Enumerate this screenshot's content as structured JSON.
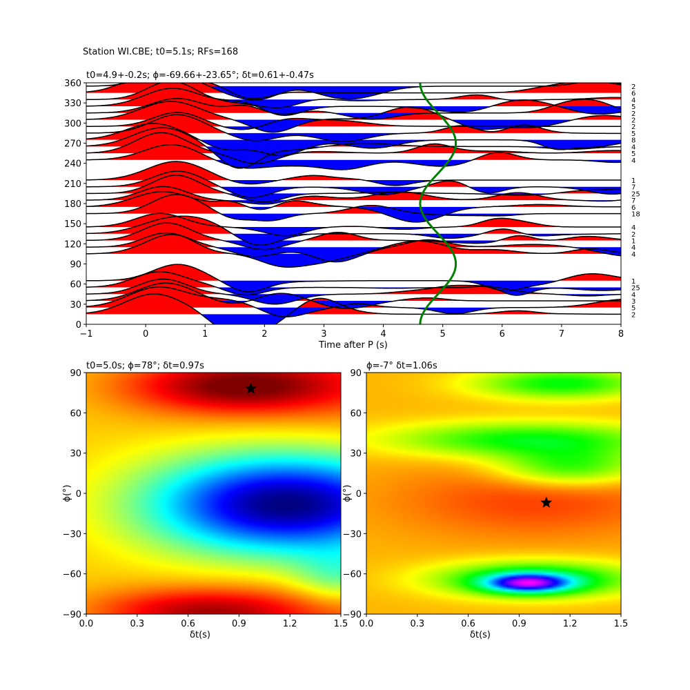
{
  "figure": {
    "suptitle": "Station WI.CBE; t0=5.1s; RFs=168"
  },
  "chart_data": [
    {
      "type": "line",
      "name": "receiver-function-traces",
      "title": "t0=4.9+-0.2s; ϕ=-69.66+-23.65°; δt=0.61+-0.47s",
      "xlabel": "Time after P (s)",
      "ylabel": "",
      "xlim": [
        -1,
        8
      ],
      "ylim": [
        0,
        360
      ],
      "xticks": [
        "−1",
        "0",
        "1",
        "2",
        "3",
        "4",
        "5",
        "6",
        "7",
        "8"
      ],
      "yticks": [
        "0",
        "30",
        "60",
        "90",
        "120",
        "150",
        "180",
        "210",
        "240",
        "270",
        "300",
        "330",
        "360"
      ],
      "positive_fill": "#ff0000",
      "negative_fill": "#0000ff",
      "trace_color": "#000000",
      "curve_color": "#008000",
      "traces": [
        {
          "baz": 15,
          "count": "2"
        },
        {
          "baz": 25,
          "count": "5"
        },
        {
          "baz": 35,
          "count": "3"
        },
        {
          "baz": 45,
          "count": "4"
        },
        {
          "baz": 55,
          "count": "25"
        },
        {
          "baz": 65,
          "count": "1"
        },
        {
          "baz": 105,
          "count": "4"
        },
        {
          "baz": 115,
          "count": "4"
        },
        {
          "baz": 125,
          "count": "1"
        },
        {
          "baz": 135,
          "count": "2"
        },
        {
          "baz": 145,
          "count": "4"
        },
        {
          "baz": 165,
          "count": "18"
        },
        {
          "baz": 175,
          "count": "6"
        },
        {
          "baz": 185,
          "count": "7"
        },
        {
          "baz": 195,
          "count": "25"
        },
        {
          "baz": 205,
          "count": "7"
        },
        {
          "baz": 215,
          "count": "1"
        },
        {
          "baz": 245,
          "count": "4"
        },
        {
          "baz": 255,
          "count": "5"
        },
        {
          "baz": 265,
          "count": "4"
        },
        {
          "baz": 275,
          "count": "8"
        },
        {
          "baz": 285,
          "count": "5"
        },
        {
          "baz": 295,
          "count": "2"
        },
        {
          "baz": 305,
          "count": "2"
        },
        {
          "baz": 315,
          "count": "2"
        },
        {
          "baz": 325,
          "count": "5"
        },
        {
          "baz": 335,
          "count": "4"
        },
        {
          "baz": 345,
          "count": "6"
        },
        {
          "baz": 355,
          "count": "2"
        }
      ],
      "predicted_time_curve": {
        "mean": 4.9,
        "amplitude": 0.3,
        "phase_deg": 0
      }
    },
    {
      "type": "heatmap",
      "name": "energy-grid-left",
      "title": "t0=5.0s; ϕ=78°; δt=0.97s",
      "xlabel": "δt(s)",
      "ylabel": "ϕ(°)",
      "xlim": [
        0,
        1.5
      ],
      "ylim": [
        -90,
        90
      ],
      "xticks": [
        "0.0",
        "0.3",
        "0.6",
        "0.9",
        "1.2",
        "1.5"
      ],
      "yticks": [
        "−90",
        "−60",
        "−30",
        "0",
        "30",
        "60",
        "90"
      ],
      "colormap": "jet",
      "best": {
        "dt": 0.97,
        "phi": 78
      }
    },
    {
      "type": "heatmap",
      "name": "energy-grid-right",
      "title": "ϕ=-7° δt=1.06s",
      "xlabel": "δt(s)",
      "ylabel": "ϕ(°)",
      "xlim": [
        0,
        1.5
      ],
      "ylim": [
        -90,
        90
      ],
      "xticks": [
        "0.0",
        "0.3",
        "0.6",
        "0.9",
        "1.2",
        "1.5"
      ],
      "yticks": [
        "−90",
        "−60",
        "−30",
        "0",
        "30",
        "60",
        "90"
      ],
      "colormap": "hsv",
      "best": {
        "dt": 1.06,
        "phi": -7
      }
    }
  ]
}
